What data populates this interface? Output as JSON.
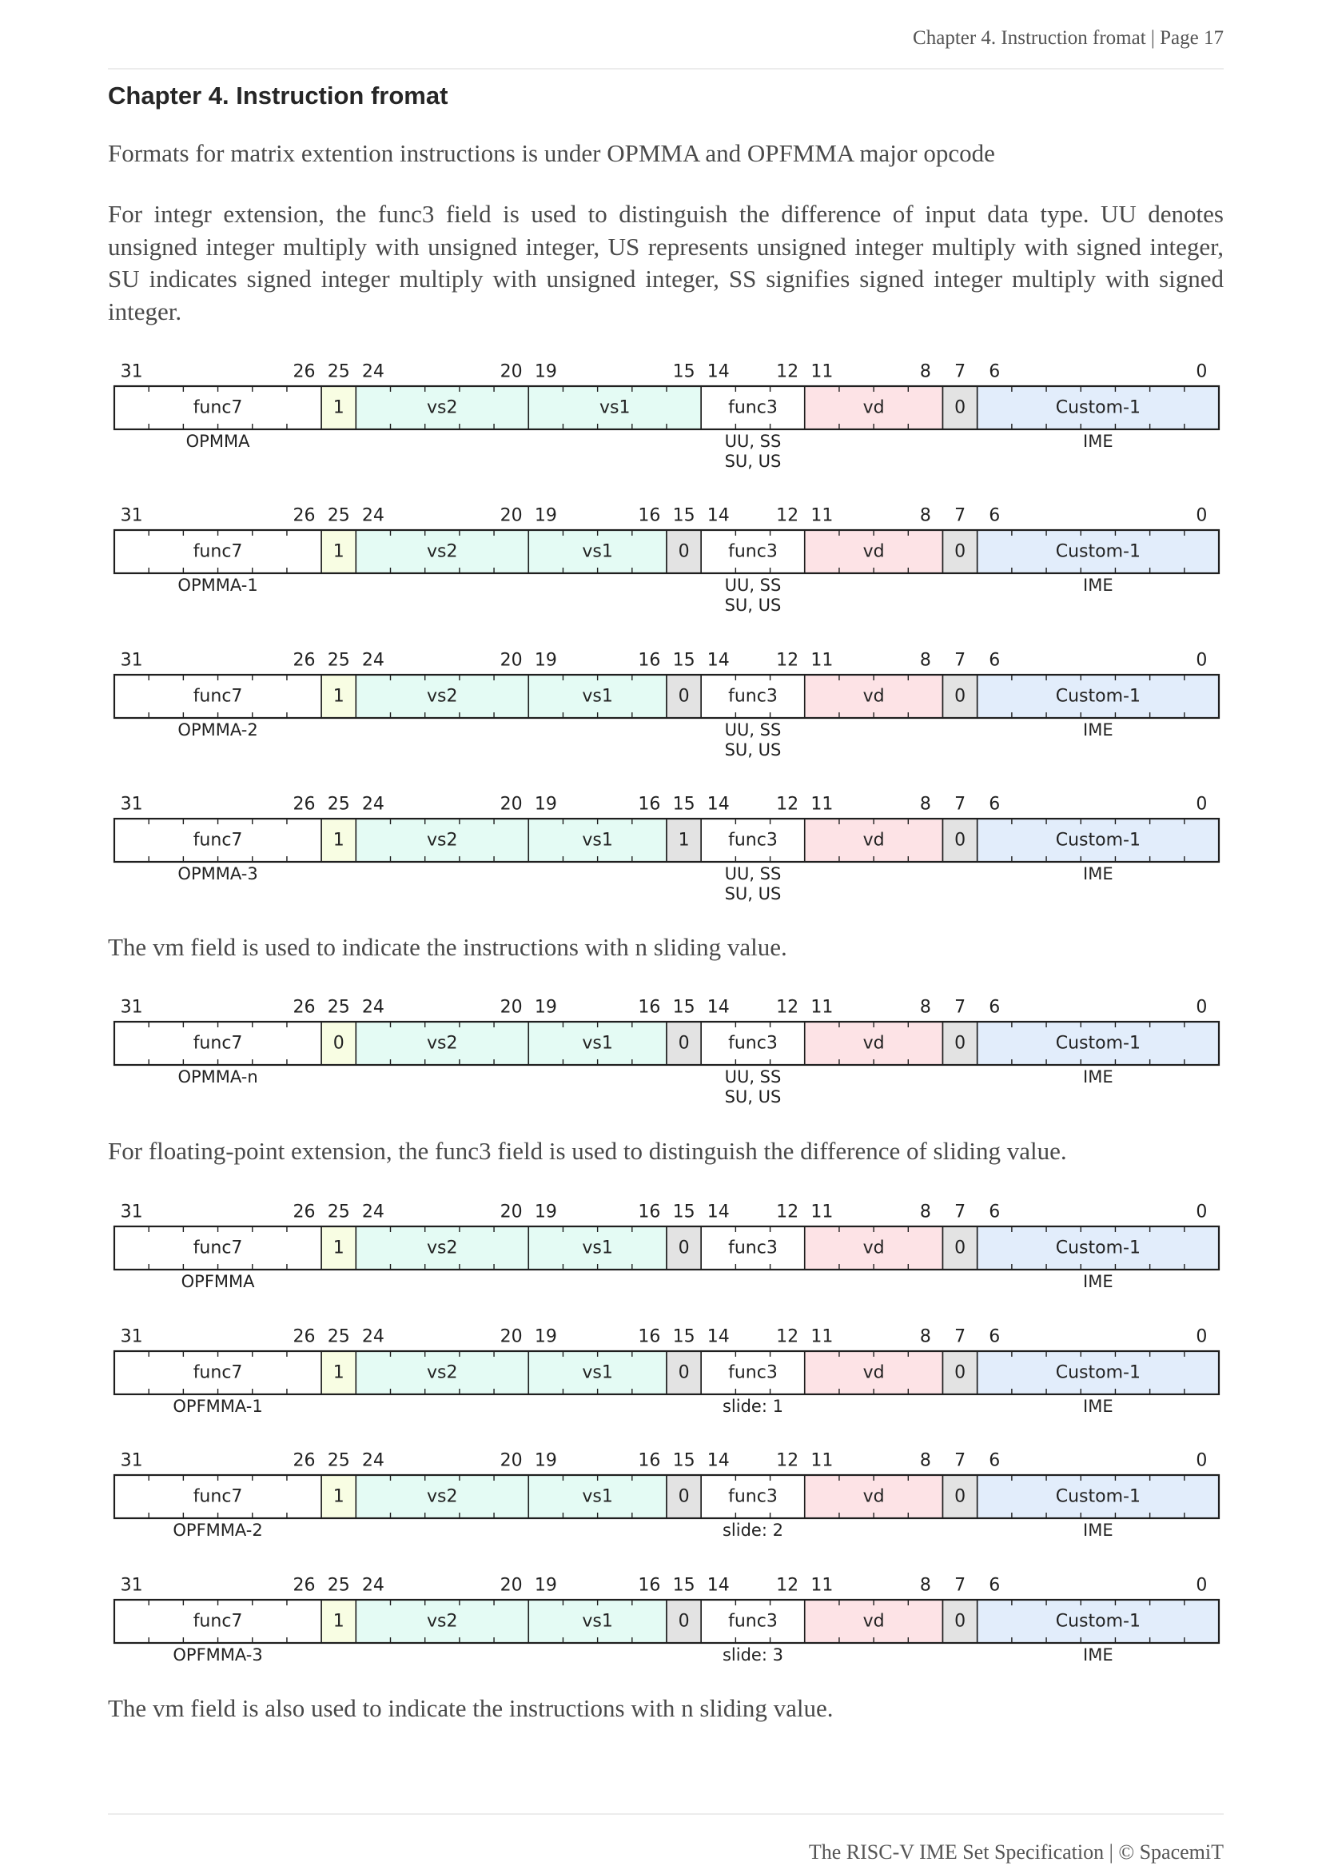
{
  "header": {
    "running_title": "Chapter 4. Instruction fromat | Page 17"
  },
  "chapter_heading": "Chapter 4. Instruction fromat",
  "paragraphs": {
    "intro": "Formats for matrix extention instructions is under OPMMA and OPFMMA major opcode",
    "integer_ext": "For integr extension, the func3 field is used to distinguish the difference of input data type. UU denotes unsigned integer multiply with unsigned integer, US represents unsigned integer multiply with signed integer, SU indicates signed integer multiply with unsigned integer, SS signifies signed integer multiply with signed integer.",
    "vm_note": "The vm field is used to indicate the instructions with n sliding value.",
    "float_ext": "For floating-point extension, the func3 field is used to distinguish the difference of sliding value.",
    "vm_note_2": "The vm field is also used to indicate the instructions with n sliding value."
  },
  "colors": {
    "plain": "#ffffff",
    "flag": "#f8fde3",
    "reg": "#e4fbf4",
    "fixed": "#e3e3e3",
    "dest": "#fde3e6",
    "opcode": "#e2edfb",
    "line": "#1f1f1f"
  },
  "diagrams": [
    {
      "fields": [
        {
          "msb": 31,
          "lsb": 26,
          "name": "func7",
          "fill": "plain",
          "notes": [
            "OPMMA"
          ]
        },
        {
          "msb": 25,
          "lsb": 25,
          "name": "1",
          "fill": "flag"
        },
        {
          "msb": 24,
          "lsb": 20,
          "name": "vs2",
          "fill": "reg"
        },
        {
          "msb": 19,
          "lsb": 15,
          "name": "vs1",
          "fill": "reg"
        },
        {
          "msb": 14,
          "lsb": 12,
          "name": "func3",
          "fill": "plain",
          "notes": [
            "UU, SS",
            "SU, US"
          ]
        },
        {
          "msb": 11,
          "lsb": 8,
          "name": "vd",
          "fill": "dest"
        },
        {
          "msb": 7,
          "lsb": 7,
          "name": "0",
          "fill": "fixed"
        },
        {
          "msb": 6,
          "lsb": 0,
          "name": "Custom-1",
          "fill": "opcode",
          "notes": [
            "IME"
          ]
        }
      ]
    },
    {
      "fields": [
        {
          "msb": 31,
          "lsb": 26,
          "name": "func7",
          "fill": "plain",
          "notes": [
            "OPMMA-1"
          ]
        },
        {
          "msb": 25,
          "lsb": 25,
          "name": "1",
          "fill": "flag"
        },
        {
          "msb": 24,
          "lsb": 20,
          "name": "vs2",
          "fill": "reg"
        },
        {
          "msb": 19,
          "lsb": 16,
          "name": "vs1",
          "fill": "reg"
        },
        {
          "msb": 15,
          "lsb": 15,
          "name": "0",
          "fill": "fixed"
        },
        {
          "msb": 14,
          "lsb": 12,
          "name": "func3",
          "fill": "plain",
          "notes": [
            "UU, SS",
            "SU, US"
          ]
        },
        {
          "msb": 11,
          "lsb": 8,
          "name": "vd",
          "fill": "dest"
        },
        {
          "msb": 7,
          "lsb": 7,
          "name": "0",
          "fill": "fixed"
        },
        {
          "msb": 6,
          "lsb": 0,
          "name": "Custom-1",
          "fill": "opcode",
          "notes": [
            "IME"
          ]
        }
      ]
    },
    {
      "fields": [
        {
          "msb": 31,
          "lsb": 26,
          "name": "func7",
          "fill": "plain",
          "notes": [
            "OPMMA-2"
          ]
        },
        {
          "msb": 25,
          "lsb": 25,
          "name": "1",
          "fill": "flag"
        },
        {
          "msb": 24,
          "lsb": 20,
          "name": "vs2",
          "fill": "reg"
        },
        {
          "msb": 19,
          "lsb": 16,
          "name": "vs1",
          "fill": "reg"
        },
        {
          "msb": 15,
          "lsb": 15,
          "name": "0",
          "fill": "fixed"
        },
        {
          "msb": 14,
          "lsb": 12,
          "name": "func3",
          "fill": "plain",
          "notes": [
            "UU, SS",
            "SU, US"
          ]
        },
        {
          "msb": 11,
          "lsb": 8,
          "name": "vd",
          "fill": "dest"
        },
        {
          "msb": 7,
          "lsb": 7,
          "name": "0",
          "fill": "fixed"
        },
        {
          "msb": 6,
          "lsb": 0,
          "name": "Custom-1",
          "fill": "opcode",
          "notes": [
            "IME"
          ]
        }
      ]
    },
    {
      "fields": [
        {
          "msb": 31,
          "lsb": 26,
          "name": "func7",
          "fill": "plain",
          "notes": [
            "OPMMA-3"
          ]
        },
        {
          "msb": 25,
          "lsb": 25,
          "name": "1",
          "fill": "flag"
        },
        {
          "msb": 24,
          "lsb": 20,
          "name": "vs2",
          "fill": "reg"
        },
        {
          "msb": 19,
          "lsb": 16,
          "name": "vs1",
          "fill": "reg"
        },
        {
          "msb": 15,
          "lsb": 15,
          "name": "1",
          "fill": "fixed"
        },
        {
          "msb": 14,
          "lsb": 12,
          "name": "func3",
          "fill": "plain",
          "notes": [
            "UU, SS",
            "SU, US"
          ]
        },
        {
          "msb": 11,
          "lsb": 8,
          "name": "vd",
          "fill": "dest"
        },
        {
          "msb": 7,
          "lsb": 7,
          "name": "0",
          "fill": "fixed"
        },
        {
          "msb": 6,
          "lsb": 0,
          "name": "Custom-1",
          "fill": "opcode",
          "notes": [
            "IME"
          ]
        }
      ]
    },
    {
      "fields": [
        {
          "msb": 31,
          "lsb": 26,
          "name": "func7",
          "fill": "plain",
          "notes": [
            "OPMMA-n"
          ]
        },
        {
          "msb": 25,
          "lsb": 25,
          "name": "0",
          "fill": "flag"
        },
        {
          "msb": 24,
          "lsb": 20,
          "name": "vs2",
          "fill": "reg"
        },
        {
          "msb": 19,
          "lsb": 16,
          "name": "vs1",
          "fill": "reg"
        },
        {
          "msb": 15,
          "lsb": 15,
          "name": "0",
          "fill": "fixed"
        },
        {
          "msb": 14,
          "lsb": 12,
          "name": "func3",
          "fill": "plain",
          "notes": [
            "UU, SS",
            "SU, US"
          ]
        },
        {
          "msb": 11,
          "lsb": 8,
          "name": "vd",
          "fill": "dest"
        },
        {
          "msb": 7,
          "lsb": 7,
          "name": "0",
          "fill": "fixed"
        },
        {
          "msb": 6,
          "lsb": 0,
          "name": "Custom-1",
          "fill": "opcode",
          "notes": [
            "IME"
          ]
        }
      ]
    },
    {
      "fields": [
        {
          "msb": 31,
          "lsb": 26,
          "name": "func7",
          "fill": "plain",
          "notes": [
            "OPFMMA"
          ]
        },
        {
          "msb": 25,
          "lsb": 25,
          "name": "1",
          "fill": "flag"
        },
        {
          "msb": 24,
          "lsb": 20,
          "name": "vs2",
          "fill": "reg"
        },
        {
          "msb": 19,
          "lsb": 16,
          "name": "vs1",
          "fill": "reg"
        },
        {
          "msb": 15,
          "lsb": 15,
          "name": "0",
          "fill": "fixed"
        },
        {
          "msb": 14,
          "lsb": 12,
          "name": "func3",
          "fill": "plain"
        },
        {
          "msb": 11,
          "lsb": 8,
          "name": "vd",
          "fill": "dest"
        },
        {
          "msb": 7,
          "lsb": 7,
          "name": "0",
          "fill": "fixed"
        },
        {
          "msb": 6,
          "lsb": 0,
          "name": "Custom-1",
          "fill": "opcode",
          "notes": [
            "IME"
          ]
        }
      ]
    },
    {
      "fields": [
        {
          "msb": 31,
          "lsb": 26,
          "name": "func7",
          "fill": "plain",
          "notes": [
            "OPFMMA-1"
          ]
        },
        {
          "msb": 25,
          "lsb": 25,
          "name": "1",
          "fill": "flag"
        },
        {
          "msb": 24,
          "lsb": 20,
          "name": "vs2",
          "fill": "reg"
        },
        {
          "msb": 19,
          "lsb": 16,
          "name": "vs1",
          "fill": "reg"
        },
        {
          "msb": 15,
          "lsb": 15,
          "name": "0",
          "fill": "fixed"
        },
        {
          "msb": 14,
          "lsb": 12,
          "name": "func3",
          "fill": "plain",
          "notes": [
            "slide: 1"
          ]
        },
        {
          "msb": 11,
          "lsb": 8,
          "name": "vd",
          "fill": "dest"
        },
        {
          "msb": 7,
          "lsb": 7,
          "name": "0",
          "fill": "fixed"
        },
        {
          "msb": 6,
          "lsb": 0,
          "name": "Custom-1",
          "fill": "opcode",
          "notes": [
            "IME"
          ]
        }
      ]
    },
    {
      "fields": [
        {
          "msb": 31,
          "lsb": 26,
          "name": "func7",
          "fill": "plain",
          "notes": [
            "OPFMMA-2"
          ]
        },
        {
          "msb": 25,
          "lsb": 25,
          "name": "1",
          "fill": "flag"
        },
        {
          "msb": 24,
          "lsb": 20,
          "name": "vs2",
          "fill": "reg"
        },
        {
          "msb": 19,
          "lsb": 16,
          "name": "vs1",
          "fill": "reg"
        },
        {
          "msb": 15,
          "lsb": 15,
          "name": "0",
          "fill": "fixed"
        },
        {
          "msb": 14,
          "lsb": 12,
          "name": "func3",
          "fill": "plain",
          "notes": [
            "slide: 2"
          ]
        },
        {
          "msb": 11,
          "lsb": 8,
          "name": "vd",
          "fill": "dest"
        },
        {
          "msb": 7,
          "lsb": 7,
          "name": "0",
          "fill": "fixed"
        },
        {
          "msb": 6,
          "lsb": 0,
          "name": "Custom-1",
          "fill": "opcode",
          "notes": [
            "IME"
          ]
        }
      ]
    },
    {
      "fields": [
        {
          "msb": 31,
          "lsb": 26,
          "name": "func7",
          "fill": "plain",
          "notes": [
            "OPFMMA-3"
          ]
        },
        {
          "msb": 25,
          "lsb": 25,
          "name": "1",
          "fill": "flag"
        },
        {
          "msb": 24,
          "lsb": 20,
          "name": "vs2",
          "fill": "reg"
        },
        {
          "msb": 19,
          "lsb": 16,
          "name": "vs1",
          "fill": "reg"
        },
        {
          "msb": 15,
          "lsb": 15,
          "name": "0",
          "fill": "fixed"
        },
        {
          "msb": 14,
          "lsb": 12,
          "name": "func3",
          "fill": "plain",
          "notes": [
            "slide: 3"
          ]
        },
        {
          "msb": 11,
          "lsb": 8,
          "name": "vd",
          "fill": "dest"
        },
        {
          "msb": 7,
          "lsb": 7,
          "name": "0",
          "fill": "fixed"
        },
        {
          "msb": 6,
          "lsb": 0,
          "name": "Custom-1",
          "fill": "opcode",
          "notes": [
            "IME"
          ]
        }
      ]
    }
  ],
  "footer": {
    "text": "The RISC-V IME Set Specification | © SpacemiT"
  }
}
